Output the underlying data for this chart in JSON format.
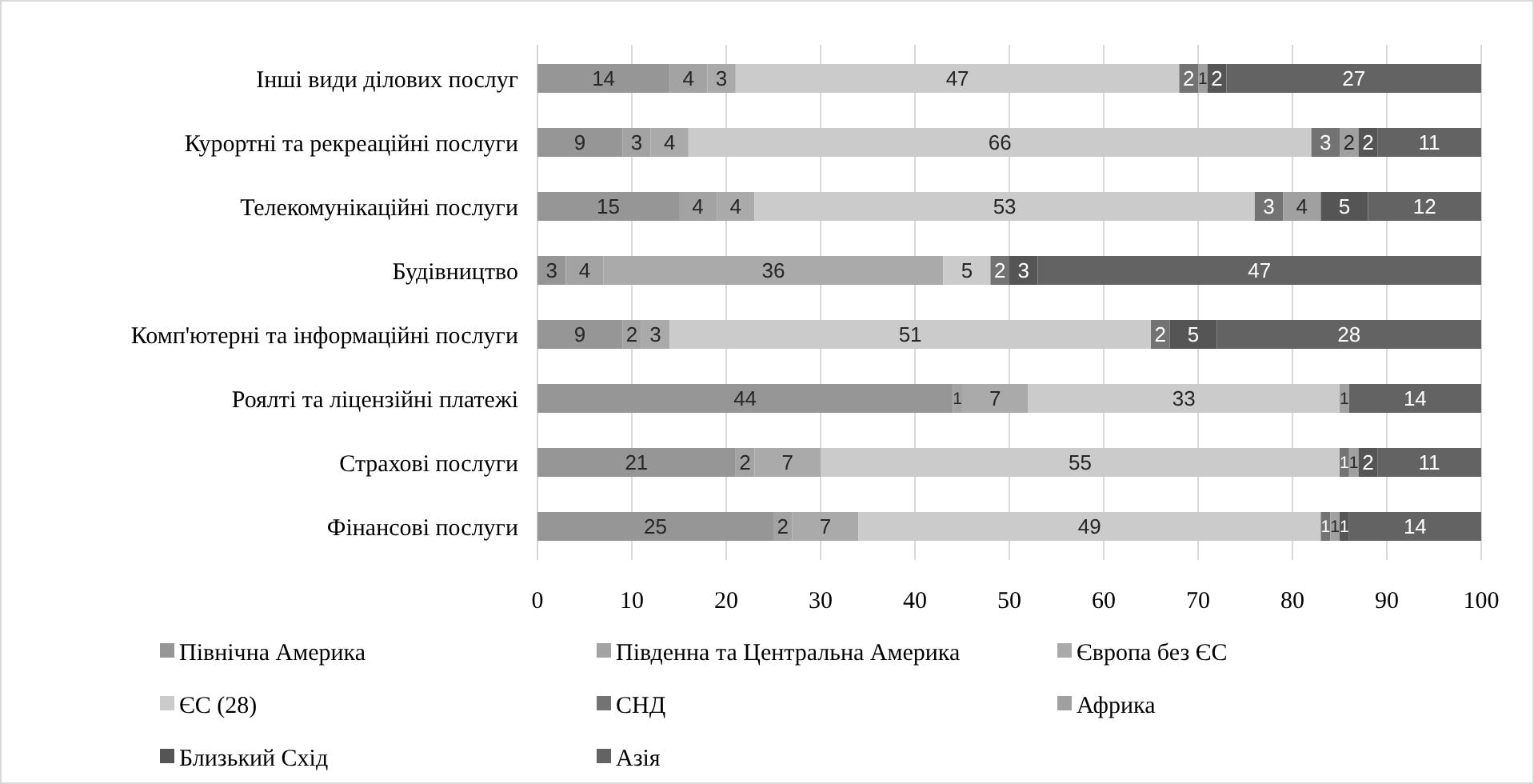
{
  "chart_data": {
    "type": "bar",
    "orientation": "horizontal",
    "stacked": true,
    "grid": "x",
    "legend": "bottom",
    "categories": [
      "Інші види ділових послуг",
      "Курортні та рекреаційні послуги",
      "Телекомунікаційні послуги",
      "Будівництво",
      "Комп'ютерні та інформаційні послуги",
      "Роялті та ліцензійні платежі",
      "Страхові послуги",
      "Фінансові послуги"
    ],
    "xlim": [
      0,
      100
    ],
    "xticks": [
      0,
      10,
      20,
      30,
      40,
      50,
      60,
      70,
      80,
      90,
      100
    ],
    "series": [
      {
        "name": "Північна Америка",
        "color": "#969696",
        "values": [
          14,
          9,
          15,
          3,
          9,
          44,
          21,
          25
        ],
        "value_labels": [
          "14",
          "9",
          "15",
          "3",
          "9",
          "44",
          "21",
          "25"
        ]
      },
      {
        "name": "Південна та Центральна Америка",
        "color": "#a3a3a3",
        "values": [
          4,
          3,
          4,
          4,
          2,
          1,
          2,
          2
        ],
        "value_labels": [
          "4",
          "3",
          "4",
          "4",
          "2",
          "1",
          "2",
          "2"
        ]
      },
      {
        "name": "Європа без ЄС",
        "color": "#aaaaaa",
        "values": [
          3,
          4,
          4,
          36,
          3,
          7,
          7,
          7
        ],
        "value_labels": [
          "3",
          "4",
          "4",
          "36",
          "3",
          "7",
          "7",
          "7"
        ]
      },
      {
        "name": "ЄС (28)",
        "color": "#cbcbcb",
        "values": [
          47,
          66,
          53,
          5,
          51,
          33,
          55,
          49
        ],
        "value_labels": [
          "47",
          "66",
          "53",
          "5",
          "51",
          "33",
          "55",
          "49"
        ]
      },
      {
        "name": "СНД",
        "color": "#737373",
        "values": [
          2,
          3,
          3,
          2,
          2,
          0,
          1,
          1
        ],
        "value_labels": [
          "2",
          "3",
          "3",
          "2",
          "2",
          null,
          "1",
          "1"
        ]
      },
      {
        "name": "Африка",
        "color": "#a0a0a0",
        "values": [
          1,
          2,
          4,
          0,
          0,
          1,
          1,
          1
        ],
        "value_labels": [
          "1",
          "2",
          "4",
          null,
          null,
          "1",
          "1",
          "1"
        ]
      },
      {
        "name": "Близький Схід",
        "color": "#555555",
        "values": [
          2,
          2,
          5,
          3,
          5,
          0,
          2,
          1
        ],
        "value_labels": [
          "2",
          "2",
          "5",
          "3",
          "5",
          null,
          "2",
          "1"
        ]
      },
      {
        "name": "Азія",
        "color": "#636363",
        "values": [
          27,
          11,
          12,
          47,
          28,
          14,
          11,
          14
        ],
        "value_labels": [
          "27",
          "11",
          "12",
          "47",
          "28",
          "14",
          "11",
          "14"
        ]
      }
    ]
  }
}
